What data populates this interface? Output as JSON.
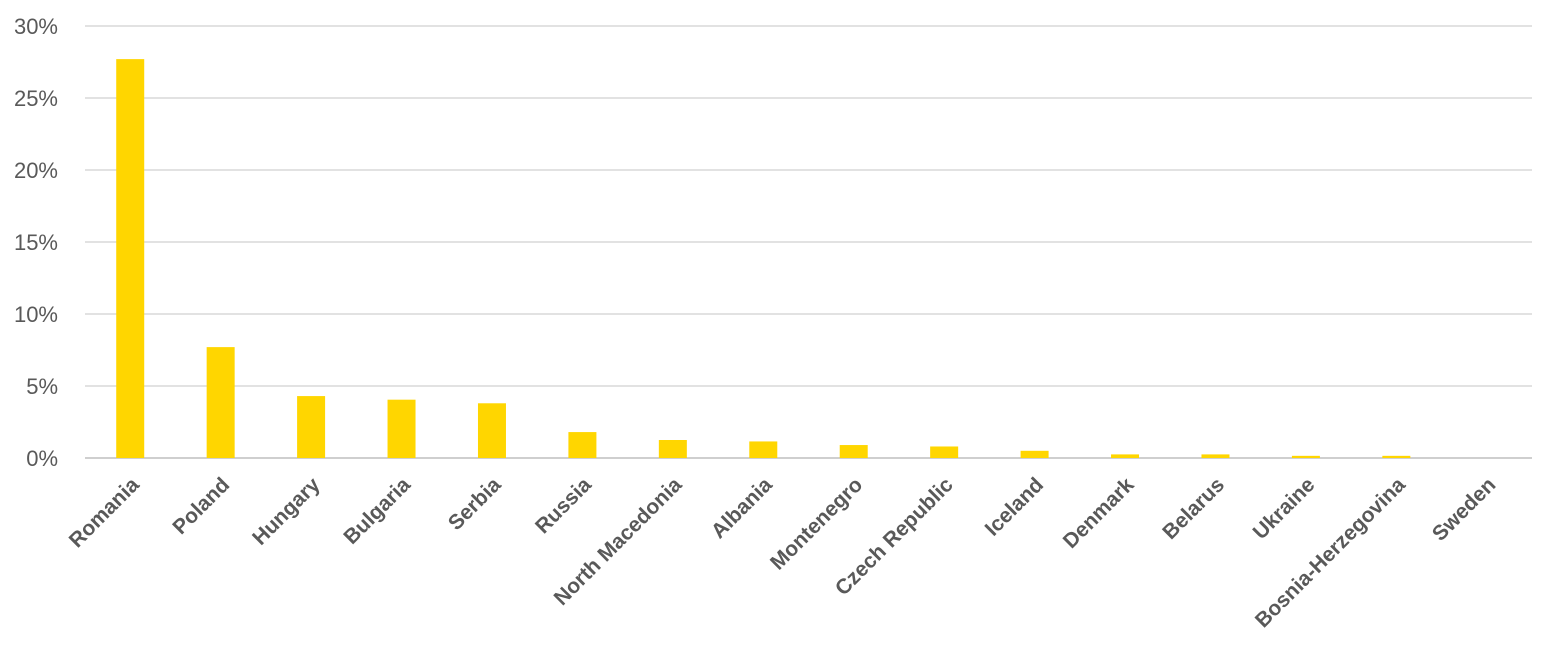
{
  "chart_data": {
    "type": "bar",
    "title": "",
    "xlabel": "",
    "ylabel": "",
    "categories": [
      "Romania",
      "Poland",
      "Hungary",
      "Bulgaria",
      "Serbia",
      "Russia",
      "North Macedonia",
      "Albania",
      "Montenegro",
      "Czech Republic",
      "Iceland",
      "Denmark",
      "Belarus",
      "Ukraine",
      "Bosnia-Herzegovina",
      "Sweden"
    ],
    "values": [
      27.7,
      7.7,
      4.3,
      4.05,
      3.8,
      1.8,
      1.25,
      1.15,
      0.9,
      0.8,
      0.5,
      0.25,
      0.25,
      0.15,
      0.15,
      0.0
    ],
    "ylim": [
      0,
      30
    ],
    "yticks": [
      0,
      5,
      10,
      15,
      20,
      25,
      30
    ],
    "ytick_labels": [
      "0%",
      "5%",
      "10%",
      "15%",
      "20%",
      "25%",
      "30%"
    ],
    "grid": true,
    "legend": "none",
    "bar_color": "#FFD600"
  }
}
